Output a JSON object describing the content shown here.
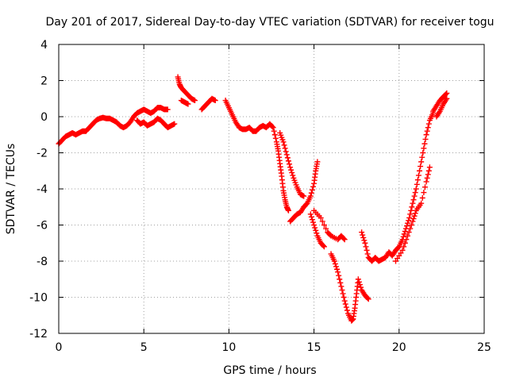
{
  "chart_data": {
    "type": "scatter",
    "title": "Day 201 of 2017, Sidereal Day-to-day VTEC variation (SDTVAR) for receiver togu",
    "xlabel": "GPS time / hours",
    "ylabel": "SDTVAR / TECUs",
    "xlim": [
      0,
      25
    ],
    "ylim": [
      -12,
      4
    ],
    "xticks": [
      "0",
      "5",
      "10",
      "15",
      "20",
      "25"
    ],
    "yticks": [
      "4",
      "2",
      "0",
      "-2",
      "-4",
      "-6",
      "-8",
      "-10",
      "-12"
    ],
    "grid": true,
    "marker": "plus",
    "color": "#ff0000",
    "series": [
      {
        "values": [
          [
            0.0,
            -1.5
          ],
          [
            0.2,
            -1.3
          ],
          [
            0.4,
            -1.1
          ],
          [
            0.6,
            -1.0
          ],
          [
            0.8,
            -0.9
          ],
          [
            1.0,
            -1.0
          ],
          [
            1.2,
            -0.9
          ],
          [
            1.4,
            -0.8
          ],
          [
            1.6,
            -0.8
          ],
          [
            1.8,
            -0.6
          ],
          [
            2.0,
            -0.4
          ],
          [
            2.2,
            -0.2
          ],
          [
            2.4,
            -0.1
          ],
          [
            2.6,
            -0.05
          ],
          [
            2.8,
            -0.1
          ],
          [
            3.0,
            -0.1
          ],
          [
            3.2,
            -0.2
          ],
          [
            3.4,
            -0.3
          ],
          [
            3.6,
            -0.5
          ],
          [
            3.8,
            -0.6
          ],
          [
            4.0,
            -0.5
          ],
          [
            4.2,
            -0.3
          ],
          [
            4.4,
            0.0
          ],
          [
            4.6,
            0.2
          ],
          [
            4.8,
            0.3
          ],
          [
            5.0,
            0.4
          ],
          [
            5.2,
            0.3
          ],
          [
            5.4,
            0.2
          ],
          [
            5.6,
            0.3
          ],
          [
            5.8,
            0.5
          ],
          [
            6.0,
            0.5
          ],
          [
            6.2,
            0.4
          ],
          [
            6.4,
            0.4
          ],
          [
            4.6,
            -0.2
          ],
          [
            4.8,
            -0.4
          ],
          [
            5.0,
            -0.3
          ],
          [
            5.2,
            -0.5
          ],
          [
            5.4,
            -0.4
          ],
          [
            5.6,
            -0.3
          ],
          [
            5.8,
            -0.1
          ],
          [
            6.0,
            -0.2
          ],
          [
            6.2,
            -0.4
          ],
          [
            6.4,
            -0.6
          ],
          [
            6.6,
            -0.5
          ],
          [
            6.8,
            -0.4
          ],
          [
            7.0,
            2.2
          ],
          [
            7.1,
            1.8
          ],
          [
            7.2,
            1.6
          ],
          [
            7.4,
            1.4
          ],
          [
            7.6,
            1.2
          ],
          [
            7.8,
            1.0
          ],
          [
            8.0,
            0.9
          ],
          [
            7.2,
            0.9
          ],
          [
            7.4,
            0.8
          ],
          [
            7.6,
            0.7
          ],
          [
            8.4,
            0.4
          ],
          [
            8.6,
            0.6
          ],
          [
            8.8,
            0.8
          ],
          [
            9.0,
            1.0
          ],
          [
            9.2,
            0.9
          ],
          [
            9.8,
            0.9
          ],
          [
            10.0,
            0.5
          ],
          [
            10.2,
            0.1
          ],
          [
            10.4,
            -0.3
          ],
          [
            10.6,
            -0.6
          ],
          [
            10.8,
            -0.7
          ],
          [
            11.0,
            -0.7
          ],
          [
            11.2,
            -0.6
          ],
          [
            11.4,
            -0.8
          ],
          [
            11.6,
            -0.8
          ],
          [
            11.8,
            -0.6
          ],
          [
            12.0,
            -0.5
          ],
          [
            12.2,
            -0.6
          ],
          [
            12.4,
            -0.4
          ],
          [
            12.6,
            -0.6
          ],
          [
            12.8,
            -1.4
          ],
          [
            12.9,
            -1.9
          ],
          [
            13.0,
            -2.6
          ],
          [
            13.1,
            -3.3
          ],
          [
            13.2,
            -4.1
          ],
          [
            13.3,
            -4.6
          ],
          [
            13.4,
            -5.0
          ],
          [
            13.5,
            -5.2
          ],
          [
            13.0,
            -0.9
          ],
          [
            13.2,
            -1.4
          ],
          [
            13.4,
            -2.1
          ],
          [
            13.6,
            -2.8
          ],
          [
            13.8,
            -3.4
          ],
          [
            14.0,
            -3.9
          ],
          [
            14.2,
            -4.3
          ],
          [
            14.4,
            -4.4
          ],
          [
            13.6,
            -5.8
          ],
          [
            13.8,
            -5.6
          ],
          [
            14.0,
            -5.4
          ],
          [
            14.2,
            -5.3
          ],
          [
            14.4,
            -5.0
          ],
          [
            14.6,
            -4.8
          ],
          [
            14.8,
            -4.4
          ],
          [
            15.0,
            -3.7
          ],
          [
            15.1,
            -3.0
          ],
          [
            15.2,
            -2.5
          ],
          [
            14.8,
            -5.4
          ],
          [
            15.0,
            -6.0
          ],
          [
            15.2,
            -6.6
          ],
          [
            15.4,
            -7.0
          ],
          [
            15.6,
            -7.2
          ],
          [
            15.0,
            -5.2
          ],
          [
            15.4,
            -5.6
          ],
          [
            15.8,
            -6.4
          ],
          [
            16.0,
            -6.6
          ],
          [
            16.4,
            -6.8
          ],
          [
            16.6,
            -6.6
          ],
          [
            16.8,
            -6.8
          ],
          [
            16.0,
            -7.6
          ],
          [
            16.2,
            -8.0
          ],
          [
            16.4,
            -8.6
          ],
          [
            16.6,
            -9.4
          ],
          [
            16.8,
            -10.2
          ],
          [
            17.0,
            -10.9
          ],
          [
            17.2,
            -11.3
          ],
          [
            17.3,
            -11.2
          ],
          [
            17.4,
            -10.6
          ],
          [
            17.5,
            -9.8
          ],
          [
            17.6,
            -9.0
          ],
          [
            17.8,
            -9.6
          ],
          [
            18.0,
            -9.9
          ],
          [
            18.2,
            -10.1
          ],
          [
            17.8,
            -6.4
          ],
          [
            18.0,
            -7.0
          ],
          [
            18.2,
            -7.8
          ],
          [
            18.4,
            -8.0
          ],
          [
            18.6,
            -7.8
          ],
          [
            18.8,
            -8.0
          ],
          [
            19.0,
            -7.9
          ],
          [
            19.2,
            -7.8
          ],
          [
            19.4,
            -7.5
          ],
          [
            19.6,
            -7.7
          ],
          [
            19.8,
            -7.4
          ],
          [
            20.0,
            -7.2
          ],
          [
            20.2,
            -6.8
          ],
          [
            20.4,
            -6.2
          ],
          [
            20.6,
            -5.6
          ],
          [
            20.8,
            -4.8
          ],
          [
            21.0,
            -4.0
          ],
          [
            21.2,
            -3.0
          ],
          [
            21.4,
            -2.0
          ],
          [
            21.6,
            -1.0
          ],
          [
            21.8,
            -0.2
          ],
          [
            22.0,
            0.2
          ],
          [
            19.8,
            -8.0
          ],
          [
            20.2,
            -7.4
          ],
          [
            20.5,
            -6.6
          ],
          [
            20.8,
            -5.8
          ],
          [
            21.0,
            -5.2
          ],
          [
            21.3,
            -4.8
          ],
          [
            21.6,
            -3.6
          ],
          [
            21.8,
            -2.8
          ],
          [
            22.0,
            0.3
          ],
          [
            22.2,
            0.6
          ],
          [
            22.4,
            0.9
          ],
          [
            22.6,
            1.1
          ],
          [
            22.8,
            1.3
          ],
          [
            22.2,
            0.0
          ],
          [
            22.4,
            0.3
          ],
          [
            22.6,
            0.7
          ],
          [
            22.8,
            1.0
          ]
        ]
      }
    ]
  }
}
